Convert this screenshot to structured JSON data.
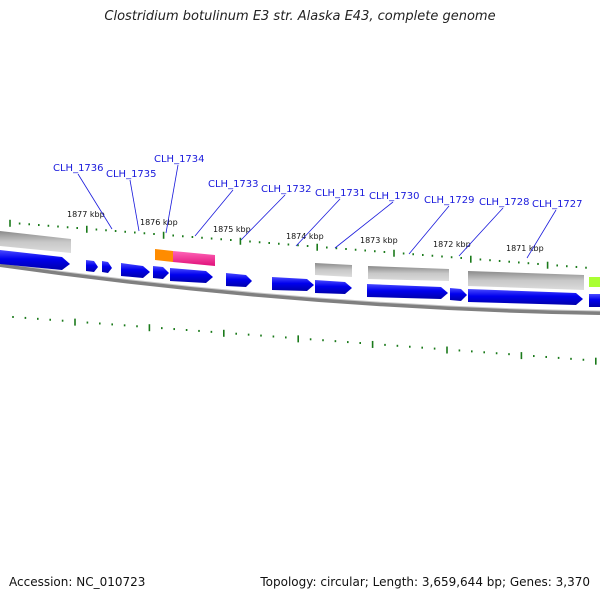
{
  "title": "Clostridium botulinum E3 str. Alaska E43, complete genome",
  "footer": {
    "accession": "Accession: NC_010723",
    "summary": "Topology: circular; Length: 3,659,644 bp; Genes: 3,370"
  },
  "ruler_labels": [
    "1877 kbp",
    "1876 kbp",
    "1875 kbp",
    "1874 kbp",
    "1873 kbp",
    "1872 kbp",
    "1871 kbp"
  ],
  "gene_labels": [
    "CLH_1736",
    "CLH_1735",
    "CLH_1734",
    "CLH_1733",
    "CLH_1732",
    "CLH_1731",
    "CLH_1730",
    "CLH_1729",
    "CLH_1728",
    "CLH_1727"
  ],
  "colors": {
    "cds": "#0000ee",
    "gene": "#b0b0b0",
    "backbone": "#808080",
    "ticks": "#1a7a1a",
    "label": "#1a1adc",
    "feature_pink": "#ff2d95",
    "feature_orange": "#ff8c00",
    "feature_lime": "#aaff33"
  }
}
